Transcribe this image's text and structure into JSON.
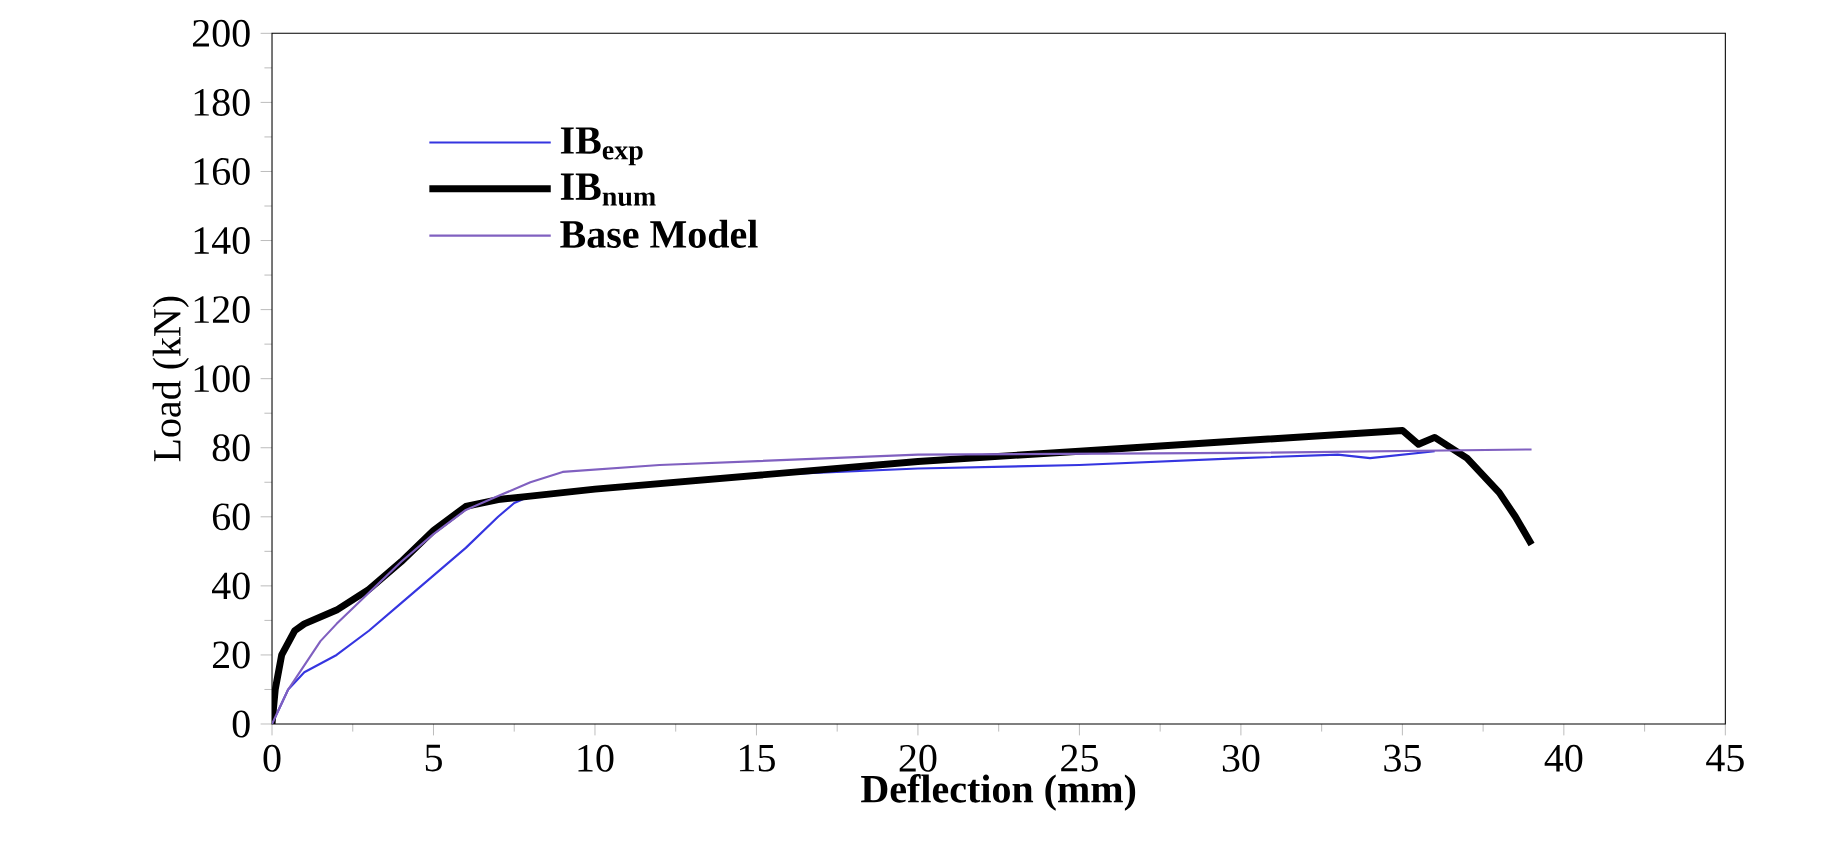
{
  "chart_data": {
    "type": "line",
    "xlabel": "Deflection (mm)",
    "ylabel": "Load (kN)",
    "xlim": [
      0,
      45
    ],
    "ylim": [
      0,
      200
    ],
    "xticks": [
      0,
      5,
      10,
      15,
      20,
      25,
      30,
      35,
      40,
      45
    ],
    "yticks": [
      0,
      20,
      40,
      60,
      80,
      100,
      120,
      140,
      160,
      180,
      200
    ],
    "grid": false,
    "legend": "top left",
    "marker": "none",
    "line_style": "solid",
    "series": [
      {
        "name": "IB$_{exp}$",
        "color": "#3535e0",
        "x": [
          0,
          0.5,
          1,
          2,
          3,
          4,
          5,
          6,
          7,
          7.5,
          8,
          10,
          15,
          20,
          25,
          30,
          33,
          34,
          35,
          36
        ],
        "values": [
          0,
          10,
          15,
          20,
          27,
          35,
          43,
          51,
          60,
          64,
          66,
          68,
          72,
          74,
          75,
          77,
          78,
          77,
          78,
          79
        ]
      },
      {
        "name": "IB$_{num}$",
        "color": "#000000",
        "x": [
          0,
          0.1,
          0.3,
          0.7,
          1,
          2,
          3,
          4,
          5,
          6,
          7,
          8,
          10,
          15,
          20,
          25,
          30,
          35,
          35.5,
          36,
          37,
          38,
          38.5,
          39
        ],
        "values": [
          0,
          10,
          20,
          27,
          29,
          33,
          39,
          47,
          56,
          63,
          65,
          66,
          68,
          72,
          76,
          79,
          82,
          85,
          81,
          83,
          77,
          67,
          60,
          52
        ]
      },
      {
        "name": "Base Model",
        "color": "#8060c0",
        "x": [
          0,
          0.5,
          1,
          1.5,
          2,
          3,
          4,
          5,
          6,
          7,
          8,
          9,
          12,
          20,
          30,
          39
        ],
        "values": [
          0,
          10,
          17,
          24,
          29,
          38,
          47,
          55,
          62,
          66,
          70,
          73,
          75,
          78,
          78.5,
          79.5
        ]
      }
    ]
  }
}
